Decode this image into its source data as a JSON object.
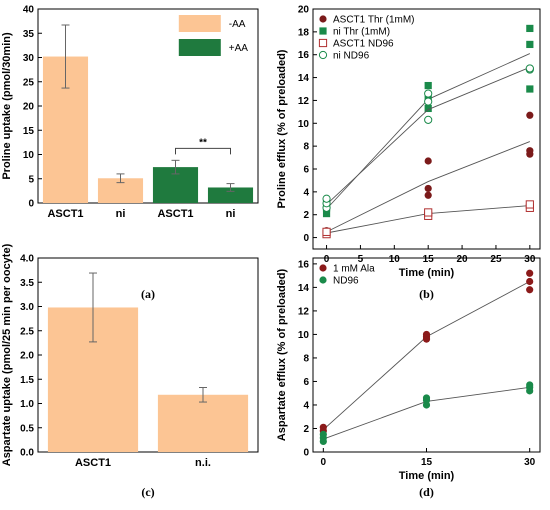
{
  "chart_data": [
    {
      "panel_label": "(a)",
      "type": "bar",
      "categories": [
        "ASCT1",
        "ni",
        "ASCT1",
        "ni"
      ],
      "values": [
        30.2,
        5.1,
        7.4,
        3.2
      ],
      "errors": [
        6.5,
        0.9,
        1.4,
        0.8
      ],
      "bar_groups": [
        "-AA",
        "-AA",
        "+AA",
        "+AA"
      ],
      "legend": [
        {
          "label": "-AA",
          "color": "#fcc594"
        },
        {
          "label": "+AA",
          "color": "#1f7a3e"
        }
      ],
      "legend_position": "top-right",
      "significance": {
        "label": "**",
        "between": [
          2,
          3
        ]
      },
      "ylabel": "Proline uptake (pmol/30min)",
      "xlabel": "",
      "ylim": [
        0,
        40
      ],
      "yticks": [
        0,
        5,
        10,
        15,
        20,
        25,
        30,
        35,
        40
      ]
    },
    {
      "panel_label": "(b)",
      "type": "scatter",
      "xlabel": "Time (min)",
      "ylabel": "Proline efflux (% of preloaded)",
      "xlim": [
        -2,
        31.5
      ],
      "ylim": [
        -1,
        20
      ],
      "xticks": [
        0,
        5,
        10,
        15,
        20,
        25,
        30
      ],
      "yticks": [
        0,
        2,
        4,
        6,
        8,
        10,
        12,
        14,
        16,
        18,
        20
      ],
      "legend_position": "top-left",
      "series": [
        {
          "name": "ASCT1 Thr (1mM)",
          "marker": "circle-filled",
          "color": "#7b1a1a",
          "x": [
            0,
            0,
            0,
            15,
            15,
            15,
            30,
            30,
            30
          ],
          "y": [
            0.3,
            0.5,
            0.6,
            3.7,
            4.3,
            6.7,
            7.3,
            7.6,
            10.7
          ],
          "fit_x": [
            0,
            15,
            30
          ],
          "fit_y": [
            0.5,
            4.9,
            8.4
          ]
        },
        {
          "name": "ni Thr (1mM)",
          "marker": "square-filled",
          "color": "#1a8a4a",
          "x": [
            0,
            0,
            0,
            15,
            15,
            15,
            30,
            30,
            30
          ],
          "y": [
            2.1,
            2.6,
            3.0,
            11.3,
            12.2,
            13.3,
            13.0,
            16.9,
            18.3
          ],
          "fit_x": [
            0,
            15,
            30
          ],
          "fit_y": [
            2.5,
            12.1,
            16.1
          ]
        },
        {
          "name": "ASCT1 ND96",
          "marker": "square-open",
          "color": "#b03030",
          "x": [
            0,
            0,
            15,
            15,
            30,
            30
          ],
          "y": [
            0.3,
            0.5,
            1.9,
            2.2,
            2.6,
            2.9
          ],
          "fit_x": [
            0,
            15,
            30
          ],
          "fit_y": [
            0.4,
            2.1,
            2.8
          ]
        },
        {
          "name": "ni ND96",
          "marker": "circle-open",
          "color": "#1a8a4a",
          "x": [
            0,
            0,
            0,
            15,
            15,
            15,
            30,
            30
          ],
          "y": [
            2.6,
            3.0,
            3.4,
            10.3,
            11.9,
            12.6,
            14.7,
            14.8
          ],
          "fit_x": [
            0,
            15,
            30
          ],
          "fit_y": [
            2.9,
            11.2,
            14.9
          ]
        }
      ]
    },
    {
      "panel_label": "(c)",
      "type": "bar",
      "categories": [
        "ASCT1",
        "n.i."
      ],
      "values": [
        2.98,
        1.18
      ],
      "errors": [
        0.71,
        0.15
      ],
      "color": "#fcc594",
      "ylabel": "Aspartate uptake (pmol/25 min per oocyte)",
      "xlabel": "",
      "ylim": [
        0,
        4.0
      ],
      "yticks": [
        "0.0",
        "0.5",
        "1.0",
        "1.5",
        "2.0",
        "2.5",
        "3.0",
        "3.5",
        "4.0"
      ]
    },
    {
      "panel_label": "(d)",
      "type": "scatter",
      "xlabel": "Time (min)",
      "ylabel": "Aspartate efflux (% of preloaded)",
      "xlim": [
        -1.5,
        31.5
      ],
      "ylim": [
        0,
        16.5
      ],
      "xticks": [
        0,
        15,
        30
      ],
      "yticks": [
        0,
        2,
        4,
        6,
        8,
        10,
        12,
        14,
        16
      ],
      "legend_position": "top-left",
      "series": [
        {
          "name": "1 mM Ala",
          "marker": "circle-filled",
          "color": "#8b1a1a",
          "x": [
            0,
            0,
            15,
            15,
            15,
            30,
            30,
            30
          ],
          "y": [
            1.8,
            2.1,
            9.6,
            9.8,
            10.0,
            13.8,
            14.5,
            15.2
          ],
          "fit_x": [
            0,
            15,
            30
          ],
          "fit_y": [
            1.9,
            9.8,
            14.5
          ]
        },
        {
          "name": "ND96",
          "marker": "circle-filled",
          "color": "#1a8a4a",
          "x": [
            0,
            0,
            0,
            15,
            15,
            15,
            30,
            30,
            30
          ],
          "y": [
            0.9,
            1.2,
            1.5,
            4.0,
            4.4,
            4.6,
            5.2,
            5.5,
            5.7
          ],
          "fit_x": [
            0,
            15,
            30
          ],
          "fit_y": [
            1.1,
            4.3,
            5.5
          ]
        }
      ]
    }
  ]
}
